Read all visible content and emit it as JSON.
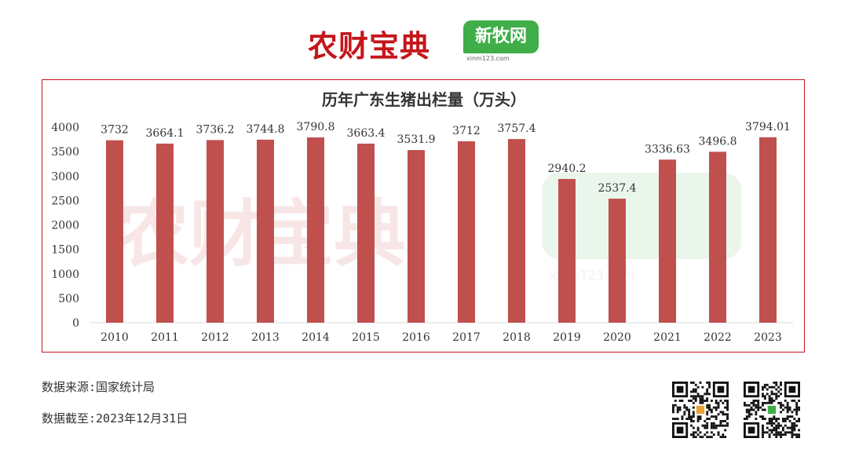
{
  "header": {
    "brand_primary": "农财宝典",
    "brand_secondary": "新牧网",
    "brand_secondary_url": "xinm123.com"
  },
  "watermark": {
    "primary": "农财宝典",
    "secondary": "新牧网",
    "url": "xinm123.com"
  },
  "chart_data": {
    "type": "bar",
    "title": "历年广东生猪出栏量（万头）",
    "xlabel": "",
    "ylabel": "",
    "categories": [
      "2010",
      "2011",
      "2012",
      "2013",
      "2014",
      "2015",
      "2016",
      "2017",
      "2018",
      "2019",
      "2020",
      "2021",
      "2022",
      "2023"
    ],
    "values": [
      3732,
      3664.1,
      3736.2,
      3744.8,
      3790.8,
      3663.4,
      3531.9,
      3712,
      3757.4,
      2940.2,
      2537.4,
      3336.63,
      3496.8,
      3794.01
    ],
    "value_labels": [
      "3732",
      "3664.1",
      "3736.2",
      "3744.8",
      "3790.8",
      "3663.4",
      "3531.9",
      "3712",
      "3757.4",
      "2940.2",
      "2537.4",
      "3336.63",
      "3496.8",
      "3794.01"
    ],
    "y_ticks": [
      "0",
      "500",
      "1000",
      "1500",
      "2000",
      "2500",
      "3000",
      "3500",
      "4000"
    ],
    "ylim": [
      0,
      4000
    ],
    "grid": false,
    "legend": "none",
    "bar_color": "#c0504d"
  },
  "footer": {
    "source": "数据来源:国家统计局",
    "cutoff": "数据截至:2023年12月31日"
  },
  "qr_codes": [
    {
      "name": "qr-code-nongcai"
    },
    {
      "name": "qr-code-xinmu"
    }
  ]
}
